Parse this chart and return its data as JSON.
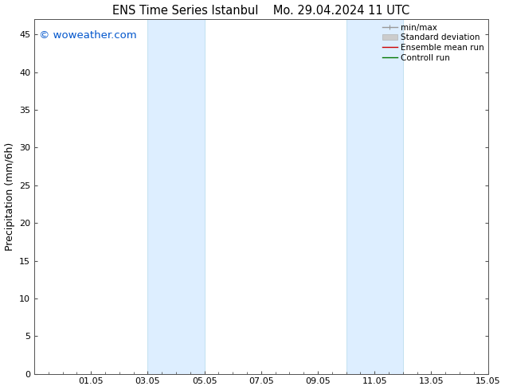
{
  "title_left": "ENS Time Series Istanbul",
  "title_right": "Mo. 29.04.2024 11 UTC",
  "ylabel": "Precipitation (mm/6h)",
  "watermark": "© woweather.com",
  "watermark_color": "#0055cc",
  "ylim": [
    0,
    47
  ],
  "yticks": [
    0,
    5,
    10,
    15,
    20,
    25,
    30,
    35,
    40,
    45
  ],
  "xtick_labels": [
    "01.05",
    "03.05",
    "05.05",
    "07.05",
    "09.05",
    "11.05",
    "13.05",
    "15.05"
  ],
  "xtick_positions": [
    2,
    4,
    6,
    8,
    10,
    12,
    14,
    16
  ],
  "xlim": [
    0,
    16
  ],
  "shaded_regions": [
    {
      "start": 4.0,
      "end": 6.0
    },
    {
      "start": 11.0,
      "end": 13.0
    }
  ],
  "shaded_color": "#ddeeff",
  "shaded_edge_color": "#bbddee",
  "bg_color": "#ffffff",
  "spine_color": "#555555",
  "legend_items": [
    {
      "label": "min/max",
      "color": "#999999",
      "lw": 1.0
    },
    {
      "label": "Standard deviation",
      "color": "#cccccc",
      "lw": 4.0
    },
    {
      "label": "Ensemble mean run",
      "color": "#cc0000",
      "lw": 1.0
    },
    {
      "label": "Controll run",
      "color": "#007700",
      "lw": 1.0
    }
  ],
  "title_fontsize": 10.5,
  "label_fontsize": 9,
  "tick_fontsize": 8,
  "legend_fontsize": 7.5,
  "watermark_fontsize": 9.5
}
